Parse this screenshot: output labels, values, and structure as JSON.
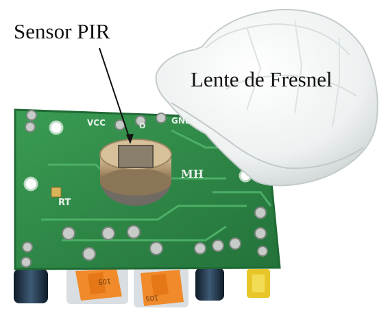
{
  "annotations": {
    "sensor_label": "Sensor PIR",
    "lens_label": "Lente de Fresnel"
  },
  "board_markings": {
    "vcc": "VCC",
    "gnd": "GND",
    "rt": "RT",
    "mh": "MH",
    "pin_mark": "O"
  },
  "potentiometer_markings": {
    "pot_1": "105",
    "pot_2": "105"
  },
  "colors": {
    "pcb_green": "#2f8a47",
    "pcb_dark": "#1f6a34",
    "lens_white": "#f2f4f3",
    "pot_orange": "#f08a2a",
    "capacitor_blue": "#1f2f40",
    "sensor_metal": "#b9a27c"
  }
}
